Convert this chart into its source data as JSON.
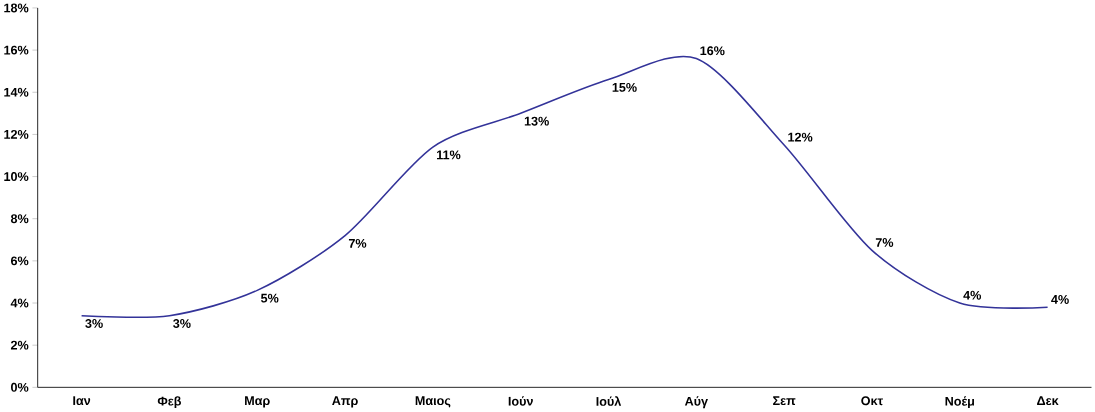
{
  "chart_data": {
    "type": "line",
    "categories": [
      "Ιαν",
      "Φεβ",
      "Μαρ",
      "Απρ",
      "Μαιος",
      "Ιούν",
      "Ιούλ",
      "Αύγ",
      "Σεπ",
      "Οκτ",
      "Νοέμ",
      "Δεκ"
    ],
    "series": [
      {
        "color": "#333399",
        "values": [
          3.4,
          3.4,
          4.6,
          7.2,
          11.4,
          13.0,
          14.6,
          15.6,
          11.5,
          6.5,
          4.0,
          3.8
        ],
        "value_labels": [
          "3%",
          "3%",
          "5%",
          "7%",
          "11%",
          "13%",
          "15%",
          "16%",
          "12%",
          "7%",
          "4%",
          "4%"
        ]
      }
    ],
    "ylim": [
      0,
      18
    ],
    "yticks": [
      {
        "value": 0,
        "label": "0%"
      },
      {
        "value": 2,
        "label": "2%"
      },
      {
        "value": 4,
        "label": "4%"
      },
      {
        "value": 6,
        "label": "6%"
      },
      {
        "value": 8,
        "label": "8%"
      },
      {
        "value": 10,
        "label": "10%"
      },
      {
        "value": 12,
        "label": "12%"
      },
      {
        "value": 14,
        "label": "14%"
      },
      {
        "value": 16,
        "label": "16%"
      },
      {
        "value": 18,
        "label": "18%"
      }
    ],
    "marker": "none",
    "line_style": "solid"
  }
}
